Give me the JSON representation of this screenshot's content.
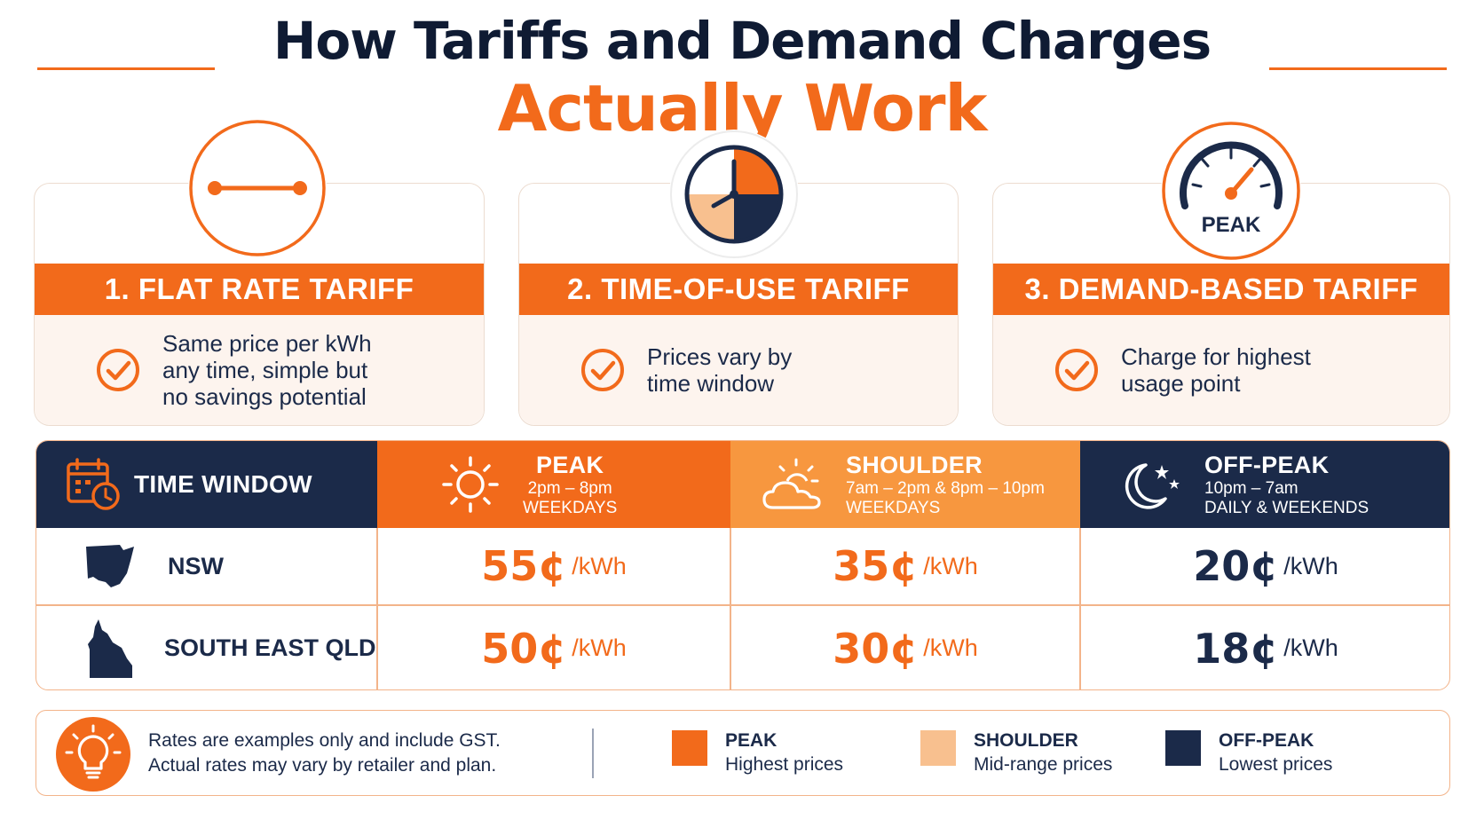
{
  "title": {
    "line1": "How Tariffs and Demand Charges",
    "line2": "Actually Work"
  },
  "cards": [
    {
      "heading": "1. FLAT RATE TARIFF",
      "desc": [
        "Same price per kWh",
        "any time, simple but",
        "no savings potential"
      ],
      "icon": "flat-line-icon"
    },
    {
      "heading": "2. TIME-OF-USE TARIFF",
      "desc": [
        "Prices vary by",
        "time window"
      ],
      "icon": "clock-icon"
    },
    {
      "heading": "3. DEMAND-BASED TARIFF",
      "desc": [
        "Charge for highest",
        "usage point"
      ],
      "icon": "gauge-icon",
      "icon_label": "PEAK"
    }
  ],
  "table": {
    "corner": "TIME WINDOW",
    "columns": [
      {
        "name": "PEAK",
        "time": "2pm – 8pm",
        "days": "WEEKDAYS",
        "color": "#f26a1b"
      },
      {
        "name": "SHOULDER",
        "time": "7am – 2pm & 8pm – 10pm",
        "days": "WEEKDAYS",
        "color": "#f7973f"
      },
      {
        "name": "OFF-PEAK",
        "time": "10pm – 7am",
        "days": "DAILY & WEEKENDS",
        "color": "#1b2a49"
      }
    ],
    "rows": [
      {
        "region": "NSW",
        "prices": [
          "55¢",
          "35¢",
          "20¢"
        ]
      },
      {
        "region": "SOUTH EAST QLD",
        "prices": [
          "50¢",
          "30¢",
          "18¢"
        ]
      }
    ],
    "unit": "/kWh"
  },
  "footer": {
    "note": [
      "Rates are examples only and include GST.",
      "Actual rates may vary by retailer and plan."
    ],
    "legend": [
      {
        "name": "PEAK",
        "desc": "Highest prices",
        "color": "#f26a1b"
      },
      {
        "name": "SHOULDER",
        "desc": "Mid-range prices",
        "color": "#f8c08f"
      },
      {
        "name": "OFF-PEAK",
        "desc": "Lowest prices",
        "color": "#1b2a49"
      }
    ]
  }
}
